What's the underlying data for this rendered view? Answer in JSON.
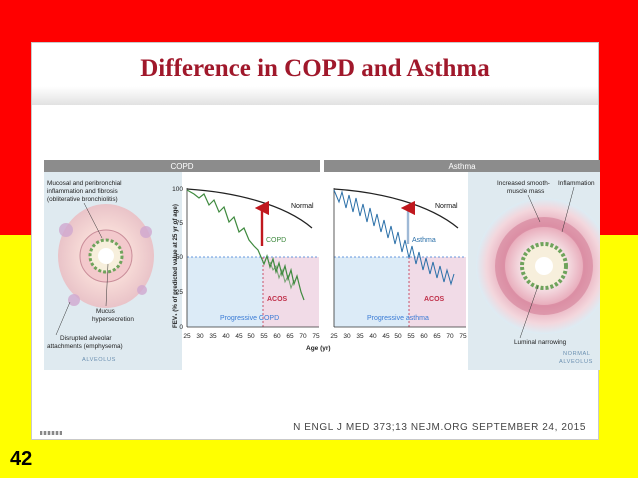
{
  "slide": {
    "title": "Difference in COPD and Asthma",
    "citation": "N ENGL J MED 373;13    NEJM.ORG    SEPTEMBER 24, 2015",
    "page_number": "42"
  },
  "figure": {
    "copd_header": "COPD",
    "asthma_header": "Asthma",
    "copd_notes": {
      "inflammation_line1": "Mucosal and peribronchial",
      "inflammation_line2": "inflammation and fibrosis",
      "inflammation_line3": "(obliterative bronchiolitis)",
      "mucus_line1": "Mucus",
      "mucus_line2": "hypersecretion",
      "alveolar_line1": "Disrupted alveolar",
      "alveolar_line2": "attachments (emphysema)",
      "alveolus": "ALVEOLUS"
    },
    "asthma_notes": {
      "smooth_line1": "Increased smooth-",
      "smooth_line2": "muscle mass",
      "inflammation": "Inflammation",
      "narrowing": "Luminal narrowing",
      "normal_line1": "NORMAL",
      "normal_line2": "ALVEOLUS"
    },
    "copd_chart": {
      "normal_label": "Normal",
      "disease_label": "COPD",
      "acos_label": "ACOS",
      "progressive_label": "Progressive COPD"
    },
    "asthma_chart": {
      "normal_label": "Normal",
      "disease_label": "Asthma",
      "acos_label": "ACOS",
      "progressive_label": "Progressive asthma"
    },
    "y_axis_label": "FEV₁ (% of predicted value at 25 yr of age)",
    "x_axis_label": "Age (yr)",
    "y_ticks": [
      "100",
      "75",
      "50",
      "25",
      "0"
    ],
    "x_ticks": [
      "25",
      "30",
      "35",
      "40",
      "45",
      "50",
      "55",
      "60",
      "65",
      "70",
      "75"
    ]
  },
  "colors": {
    "title": "#a0182b",
    "copd_line": "#3f8a3f",
    "asthma_line": "#2a6fa8",
    "acos": "#c0304a",
    "arrow_copd": "#c0181e",
    "header_band": "#8c8c8c"
  }
}
